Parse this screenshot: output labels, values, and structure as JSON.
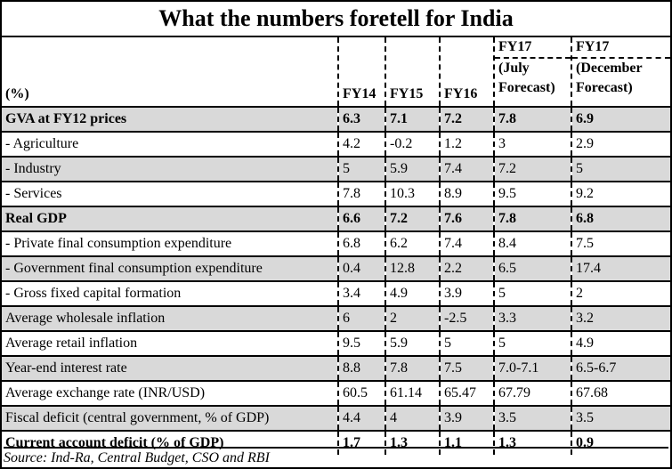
{
  "title": "What the numbers foretell for India",
  "header": {
    "label": "(%)",
    "col1": "FY14",
    "col2": "FY15",
    "col3": "FY16",
    "col4": [
      "FY17",
      "(July",
      "Forecast)"
    ],
    "col5": [
      "FY17",
      "(December",
      "Forecast)"
    ]
  },
  "rows": [
    {
      "label": "GVA at FY12 prices",
      "values": [
        "6.3",
        "7.1",
        "7.2",
        "7.8",
        "6.9"
      ]
    },
    {
      "label": "- Agriculture",
      "values": [
        "4.2",
        "-0.2",
        "1.2",
        "3",
        "2.9"
      ]
    },
    {
      "label": "- Industry",
      "values": [
        "5",
        "5.9",
        "7.4",
        "7.2",
        "5"
      ]
    },
    {
      "label": "- Services",
      "values": [
        "7.8",
        "10.3",
        "8.9",
        "9.5",
        "9.2"
      ]
    },
    {
      "label": "Real GDP",
      "values": [
        "6.6",
        "7.2",
        "7.6",
        "7.8",
        "6.8"
      ]
    },
    {
      "label": "- Private final consumption expenditure",
      "values": [
        "6.8",
        "6.2",
        "7.4",
        "8.4",
        "7.5"
      ]
    },
    {
      "label": "- Government final consumption expenditure",
      "values": [
        "0.4",
        "12.8",
        "2.2",
        "6.5",
        "17.4"
      ]
    },
    {
      "label": "- Gross fixed capital formation",
      "values": [
        "3.4",
        "4.9",
        "3.9",
        "5",
        "2"
      ]
    },
    {
      "label": "Average wholesale inflation",
      "values": [
        "6",
        "2",
        "-2.5",
        "3.3",
        "3.2"
      ]
    },
    {
      "label": "Average retail inflation",
      "values": [
        "9.5",
        "5.9",
        "5",
        "5",
        "4.9"
      ]
    },
    {
      "label": "Year-end interest rate",
      "values": [
        "8.8",
        "7.8",
        "7.5",
        "7.0-7.1",
        "6.5-6.7"
      ]
    },
    {
      "label": "Average exchange rate (INR/USD)",
      "values": [
        "60.5",
        "61.14",
        "65.47",
        "67.79",
        "67.68"
      ]
    },
    {
      "label": "Fiscal deficit (central government, % of GDP)",
      "values": [
        "4.4",
        "4",
        "3.9",
        "3.5",
        "3.5"
      ]
    },
    {
      "label": "Current account deficit (% of GDP)",
      "values": [
        "1.7",
        "1.3",
        "1.1",
        "1.3",
        "0.9"
      ]
    }
  ],
  "source": "Source: Ind-Ra, Central Budget, CSO and RBI"
}
